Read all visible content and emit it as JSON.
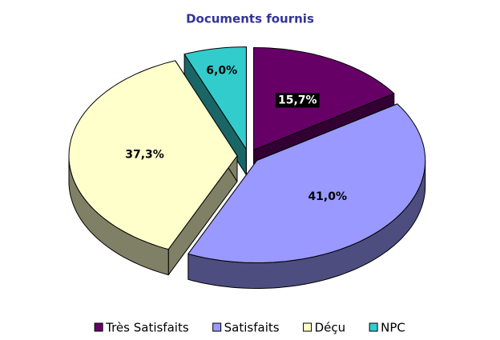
{
  "chart_data": {
    "type": "pie",
    "title": "Documents fournis",
    "categories": [
      "Très Satisfaits",
      "Satisfaits",
      "Déçu",
      "NPC"
    ],
    "values": [
      15.7,
      41.0,
      37.3,
      6.0
    ],
    "value_labels": [
      "15,7%",
      "41,0%",
      "37,3%",
      "6,0%"
    ],
    "colors": [
      "#660066",
      "#9999ff",
      "#ffffcc",
      "#33cccc"
    ],
    "legend": "bottom"
  }
}
